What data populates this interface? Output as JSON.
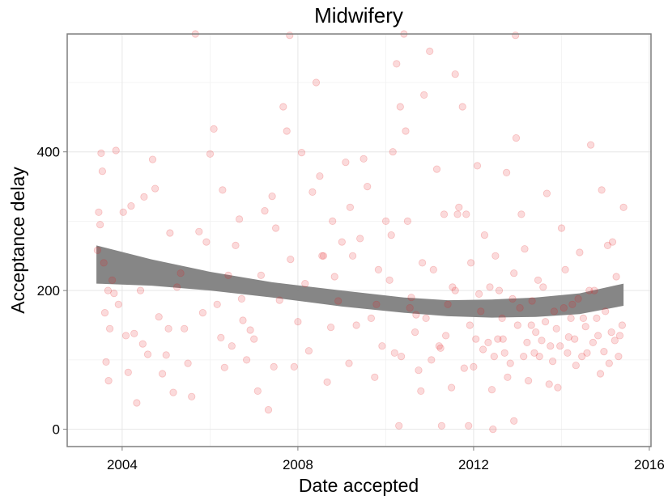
{
  "chart_data": {
    "type": "scatter",
    "title": "Midwifery",
    "xlabel": "Date accepted",
    "ylabel": "Acceptance delay",
    "x_ticks": [
      "2004",
      "2008",
      "2012",
      "2016"
    ],
    "y_ticks": [
      "0",
      "200",
      "400"
    ],
    "xlim": [
      "2002-10-01",
      "2016-01-15"
    ],
    "ylim": [
      -25,
      570
    ],
    "grid": true,
    "point_color": "#e41a1c",
    "band_color": "#808080",
    "points": [
      [
        "2003-06-10",
        258
      ],
      [
        "2003-06-20",
        313
      ],
      [
        "2003-07-01",
        295
      ],
      [
        "2003-07-10",
        398
      ],
      [
        "2003-07-20",
        372
      ],
      [
        "2003-08-01",
        240
      ],
      [
        "2003-08-10",
        168
      ],
      [
        "2003-08-20",
        97
      ],
      [
        "2003-09-05",
        200
      ],
      [
        "2003-09-20",
        145
      ],
      [
        "2003-10-10",
        215
      ],
      [
        "2003-10-25",
        196
      ],
      [
        "2003-11-10",
        402
      ],
      [
        "2003-12-01",
        180
      ],
      [
        "2004-01-10",
        313
      ],
      [
        "2004-02-01",
        135
      ],
      [
        "2004-02-20",
        82
      ],
      [
        "2004-03-15",
        322
      ],
      [
        "2004-04-10",
        138
      ],
      [
        "2004-05-01",
        38
      ],
      [
        "2004-06-01",
        200
      ],
      [
        "2004-07-01",
        335
      ],
      [
        "2004-08-01",
        108
      ],
      [
        "2004-09-10",
        389
      ],
      [
        "2004-10-01",
        347
      ],
      [
        "2004-11-01",
        162
      ],
      [
        "2004-12-01",
        80
      ],
      [
        "2005-01-01",
        107
      ],
      [
        "2005-02-01",
        283
      ],
      [
        "2005-03-01",
        53
      ],
      [
        "2005-04-01",
        205
      ],
      [
        "2005-05-01",
        225
      ],
      [
        "2005-06-01",
        145
      ],
      [
        "2005-07-01",
        95
      ],
      [
        "2005-08-01",
        47
      ],
      [
        "2005-09-01",
        570
      ],
      [
        "2005-10-01",
        285
      ],
      [
        "2005-11-01",
        168
      ],
      [
        "2005-12-01",
        270
      ],
      [
        "2006-01-01",
        397
      ],
      [
        "2006-02-01",
        433
      ],
      [
        "2006-03-01",
        180
      ],
      [
        "2006-04-01",
        132
      ],
      [
        "2006-05-01",
        89
      ],
      [
        "2006-06-01",
        222
      ],
      [
        "2006-07-01",
        120
      ],
      [
        "2006-08-01",
        265
      ],
      [
        "2006-09-01",
        303
      ],
      [
        "2006-10-01",
        157
      ],
      [
        "2006-11-01",
        100
      ],
      [
        "2006-12-01",
        143
      ],
      [
        "2007-01-01",
        130
      ],
      [
        "2007-02-01",
        55
      ],
      [
        "2007-03-01",
        222
      ],
      [
        "2007-04-01",
        315
      ],
      [
        "2007-05-01",
        28
      ],
      [
        "2007-06-01",
        336
      ],
      [
        "2007-07-01",
        290
      ],
      [
        "2007-08-01",
        186
      ],
      [
        "2007-09-01",
        465
      ],
      [
        "2007-10-01",
        430
      ],
      [
        "2007-11-01",
        245
      ],
      [
        "2007-12-01",
        90
      ],
      [
        "2008-01-01",
        155
      ],
      [
        "2008-02-01",
        399
      ],
      [
        "2008-03-01",
        210
      ],
      [
        "2008-04-01",
        113
      ],
      [
        "2008-05-01",
        342
      ],
      [
        "2008-06-01",
        500
      ],
      [
        "2008-07-01",
        365
      ],
      [
        "2008-08-01",
        250
      ],
      [
        "2008-09-01",
        68
      ],
      [
        "2008-10-01",
        147
      ],
      [
        "2008-11-01",
        220
      ],
      [
        "2008-12-01",
        185
      ],
      [
        "2009-01-01",
        270
      ],
      [
        "2009-02-01",
        385
      ],
      [
        "2009-03-01",
        95
      ],
      [
        "2009-04-01",
        250
      ],
      [
        "2009-05-01",
        150
      ],
      [
        "2009-06-01",
        275
      ],
      [
        "2009-07-01",
        390
      ],
      [
        "2009-08-01",
        350
      ],
      [
        "2009-09-01",
        160
      ],
      [
        "2009-10-01",
        75
      ],
      [
        "2009-11-01",
        230
      ],
      [
        "2009-12-01",
        120
      ],
      [
        "2010-01-01",
        300
      ],
      [
        "2010-02-01",
        215
      ],
      [
        "2010-03-01",
        400
      ],
      [
        "2010-04-01",
        527
      ],
      [
        "2010-05-01",
        465
      ],
      [
        "2010-06-01",
        570
      ],
      [
        "2010-07-01",
        300
      ],
      [
        "2010-08-01",
        190
      ],
      [
        "2010-09-01",
        140
      ],
      [
        "2010-10-01",
        85
      ],
      [
        "2010-11-01",
        240
      ],
      [
        "2010-12-01",
        160
      ],
      [
        "2011-01-01",
        545
      ],
      [
        "2011-02-01",
        230
      ],
      [
        "2011-03-01",
        375
      ],
      [
        "2011-04-01",
        117
      ],
      [
        "2011-05-01",
        310
      ],
      [
        "2011-06-01",
        180
      ],
      [
        "2011-07-01",
        60
      ],
      [
        "2011-08-01",
        200
      ],
      [
        "2011-09-01",
        320
      ],
      [
        "2011-10-01",
        465
      ],
      [
        "2011-11-01",
        310
      ],
      [
        "2011-12-01",
        150
      ],
      [
        "2012-01-01",
        90
      ],
      [
        "2012-02-01",
        380
      ],
      [
        "2012-03-01",
        170
      ],
      [
        "2012-04-01",
        280
      ],
      [
        "2012-05-01",
        125
      ],
      [
        "2012-06-01",
        57
      ],
      [
        "2012-07-01",
        250
      ],
      [
        "2012-08-01",
        200
      ],
      [
        "2012-09-01",
        130
      ],
      [
        "2012-10-01",
        370
      ],
      [
        "2012-11-01",
        95
      ],
      [
        "2012-12-01",
        225
      ],
      [
        "2013-01-01",
        150
      ],
      [
        "2013-02-01",
        310
      ],
      [
        "2013-03-01",
        260
      ],
      [
        "2013-04-01",
        70
      ],
      [
        "2013-05-01",
        185
      ],
      [
        "2013-06-01",
        140
      ],
      [
        "2013-07-01",
        105
      ],
      [
        "2013-08-01",
        205
      ],
      [
        "2013-09-01",
        340
      ],
      [
        "2013-10-01",
        120
      ],
      [
        "2013-11-01",
        170
      ],
      [
        "2013-12-01",
        60
      ],
      [
        "2014-01-01",
        290
      ],
      [
        "2014-02-01",
        230
      ],
      [
        "2014-03-01",
        133
      ],
      [
        "2014-04-01",
        180
      ],
      [
        "2014-05-01",
        92
      ],
      [
        "2014-06-01",
        255
      ],
      [
        "2014-07-01",
        160
      ],
      [
        "2014-08-01",
        110
      ],
      [
        "2014-09-01",
        410
      ],
      [
        "2014-10-01",
        200
      ],
      [
        "2014-11-01",
        135
      ],
      [
        "2014-12-01",
        345
      ],
      [
        "2015-01-01",
        170
      ],
      [
        "2015-02-01",
        95
      ],
      [
        "2015-03-01",
        270
      ],
      [
        "2015-04-01",
        220
      ],
      [
        "2015-05-01",
        135
      ],
      [
        "2015-06-01",
        320
      ],
      [
        "2010-02-15",
        280
      ],
      [
        "2010-03-15",
        110
      ],
      [
        "2010-05-10",
        105
      ],
      [
        "2010-06-15",
        430
      ],
      [
        "2010-07-20",
        175
      ],
      [
        "2010-09-10",
        165
      ],
      [
        "2010-10-20",
        55
      ],
      [
        "2011-01-15",
        100
      ],
      [
        "2011-03-20",
        120
      ],
      [
        "2011-05-15",
        135
      ],
      [
        "2011-07-10",
        205
      ],
      [
        "2011-08-20",
        310
      ],
      [
        "2011-10-15",
        88
      ],
      [
        "2011-12-10",
        240
      ],
      [
        "2012-01-20",
        130
      ],
      [
        "2012-02-15",
        195
      ],
      [
        "2012-03-20",
        115
      ],
      [
        "2012-05-15",
        205
      ],
      [
        "2012-06-20",
        105
      ],
      [
        "2012-07-20",
        130
      ],
      [
        "2012-08-25",
        160
      ],
      [
        "2012-09-15",
        110
      ],
      [
        "2012-10-10",
        75
      ],
      [
        "2012-11-20",
        188
      ],
      [
        "2013-01-20",
        175
      ],
      [
        "2013-02-20",
        105
      ],
      [
        "2013-03-20",
        125
      ],
      [
        "2013-04-25",
        150
      ],
      [
        "2013-05-20",
        110
      ],
      [
        "2013-06-20",
        215
      ],
      [
        "2013-07-20",
        128
      ],
      [
        "2013-08-20",
        155
      ],
      [
        "2013-09-20",
        65
      ],
      [
        "2013-10-20",
        98
      ],
      [
        "2013-11-20",
        145
      ],
      [
        "2013-12-20",
        120
      ],
      [
        "2014-01-20",
        175
      ],
      [
        "2014-02-20",
        110
      ],
      [
        "2014-03-20",
        160
      ],
      [
        "2014-04-20",
        130
      ],
      [
        "2014-05-20",
        188
      ],
      [
        "2014-06-20",
        105
      ],
      [
        "2014-07-20",
        148
      ],
      [
        "2014-08-20",
        200
      ],
      [
        "2014-09-20",
        125
      ],
      [
        "2014-10-20",
        160
      ],
      [
        "2014-11-20",
        80
      ],
      [
        "2014-12-20",
        112
      ],
      [
        "2015-01-20",
        265
      ],
      [
        "2015-02-20",
        140
      ],
      [
        "2015-03-20",
        128
      ],
      [
        "2015-04-20",
        105
      ],
      [
        "2015-05-20",
        150
      ],
      [
        "2010-04-20",
        5
      ],
      [
        "2011-04-10",
        5
      ],
      [
        "2011-11-20",
        5
      ],
      [
        "2012-06-10",
        0
      ],
      [
        "2012-12-01",
        12
      ],
      [
        "2012-12-15",
        568
      ],
      [
        "2007-10-25",
        568
      ],
      [
        "2011-08-01",
        512
      ],
      [
        "2010-11-15",
        482
      ],
      [
        "2012-12-20",
        420
      ],
      [
        "2009-03-10",
        320
      ],
      [
        "2008-07-20",
        250
      ],
      [
        "2006-04-15",
        345
      ],
      [
        "2005-01-20",
        145
      ],
      [
        "2004-06-20",
        123
      ],
      [
        "2003-09-10",
        70
      ],
      [
        "2006-09-20",
        188
      ],
      [
        "2008-10-15",
        300
      ],
      [
        "2009-10-15",
        180
      ],
      [
        "2007-06-15",
        90
      ]
    ],
    "band": {
      "x": [
        "2003-06-01",
        "2004-09-01",
        "2006-01-01",
        "2007-06-01",
        "2009-01-01",
        "2010-06-01",
        "2011-06-01",
        "2012-06-01",
        "2013-06-01",
        "2014-06-01",
        "2015-06-01"
      ],
      "upper": [
        265,
        245,
        227,
        212,
        200,
        190,
        186,
        187,
        190,
        196,
        210
      ],
      "lower": [
        210,
        207,
        200,
        190,
        177,
        168,
        163,
        161,
        162,
        166,
        178
      ]
    }
  }
}
